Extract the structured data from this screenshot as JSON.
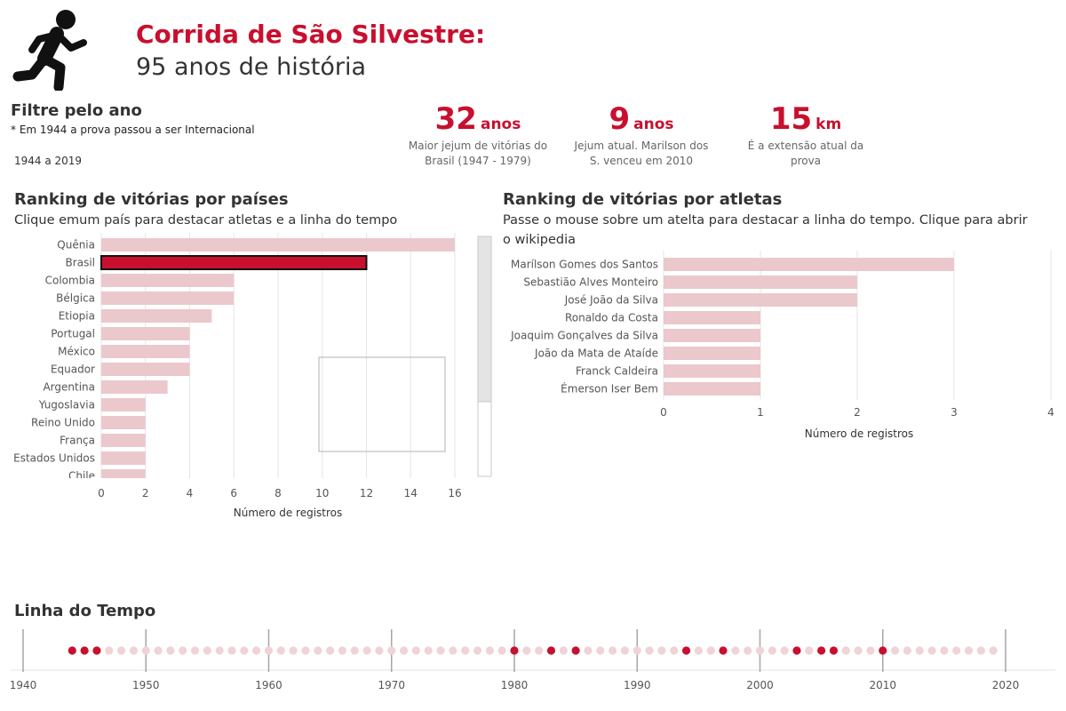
{
  "header": {
    "title_line1": "Corrida de São Silvestre:",
    "title_line2": "95 anos de história",
    "icon": "runner-icon"
  },
  "filter": {
    "title": "Filtre pelo ano",
    "note": "* Em 1944 a prova passou a ser Internacional",
    "range": "1944 a 2019"
  },
  "kpis": [
    {
      "value": "32",
      "unit": "anos",
      "desc": "Maior jejum de vitórias do Brasil (1947 - 1979)"
    },
    {
      "value": "9",
      "unit": "anos",
      "desc": "Jejum atual. Marilson dos S. venceu em 2010"
    },
    {
      "value": "15",
      "unit": "km",
      "desc": "É a extensão atual da prova"
    }
  ],
  "countries_section": {
    "title": "Ranking de vitórias por países",
    "subtitle": "Clique emum país para destacar atletas e a linha do tempo"
  },
  "athletes_section": {
    "title": "Ranking de vitórias por atletas",
    "subtitle": "Passe o mouse sobre um atelta para destacar a linha do tempo.  Clique para abrir o wikipedia"
  },
  "timeline_section": {
    "title": "Linha do Tempo"
  },
  "colors": {
    "accent": "#c8102e",
    "bar_light": "#ebc8cc",
    "dot_light": "#f0d3d6",
    "grid": "#e6e6e6"
  },
  "chart_data": [
    {
      "type": "bar",
      "orientation": "horizontal",
      "categories": [
        "Quênia",
        "Brasil",
        "Colombia",
        "Bélgica",
        "Etiopia",
        "Portugal",
        "México",
        "Equador",
        "Argentina",
        "Yugoslavia",
        "Reino Unido",
        "França",
        "Estados Unidos",
        "Chile"
      ],
      "values": [
        16,
        12,
        6,
        6,
        5,
        4,
        4,
        4,
        3,
        2,
        2,
        2,
        2,
        2
      ],
      "highlight": "Brasil",
      "xlabel": "Número de registros",
      "xlim": [
        0,
        16
      ],
      "xticks": [
        0,
        2,
        4,
        6,
        8,
        10,
        12,
        14,
        16
      ],
      "grid": true
    },
    {
      "type": "bar",
      "orientation": "horizontal",
      "categories": [
        "Marílson Gomes dos Santos",
        "Sebastião Alves Monteiro",
        "José João da Silva",
        "Ronaldo da Costa",
        "Joaquim Gonçalves da Silva",
        "João da Mata de Ataíde",
        "Franck Caldeira",
        "Émerson Iser Bem"
      ],
      "values": [
        3,
        2,
        2,
        1,
        1,
        1,
        1,
        1
      ],
      "xlabel": "Número de registros",
      "xlim": [
        0,
        4
      ],
      "xticks": [
        0,
        1,
        2,
        3,
        4
      ],
      "grid": true
    },
    {
      "type": "scatter",
      "xlim": [
        1940,
        2020
      ],
      "xticks": [
        1940,
        1950,
        1960,
        1970,
        1980,
        1990,
        2000,
        2010,
        2020
      ],
      "years": [
        1944,
        1945,
        1946,
        1947,
        1948,
        1949,
        1950,
        1951,
        1952,
        1953,
        1954,
        1955,
        1956,
        1957,
        1958,
        1959,
        1960,
        1961,
        1962,
        1963,
        1964,
        1965,
        1966,
        1967,
        1968,
        1969,
        1970,
        1971,
        1972,
        1973,
        1974,
        1975,
        1976,
        1977,
        1978,
        1979,
        1980,
        1981,
        1982,
        1983,
        1984,
        1985,
        1986,
        1987,
        1988,
        1989,
        1990,
        1991,
        1992,
        1993,
        1994,
        1995,
        1996,
        1997,
        1998,
        1999,
        2000,
        2001,
        2002,
        2003,
        2004,
        2005,
        2006,
        2007,
        2008,
        2009,
        2010,
        2011,
        2012,
        2013,
        2014,
        2015,
        2016,
        2017,
        2018,
        2019
      ],
      "highlighted_years": [
        1944,
        1945,
        1946,
        1980,
        1983,
        1985,
        1994,
        1997,
        2003,
        2005,
        2006,
        2010
      ]
    }
  ]
}
